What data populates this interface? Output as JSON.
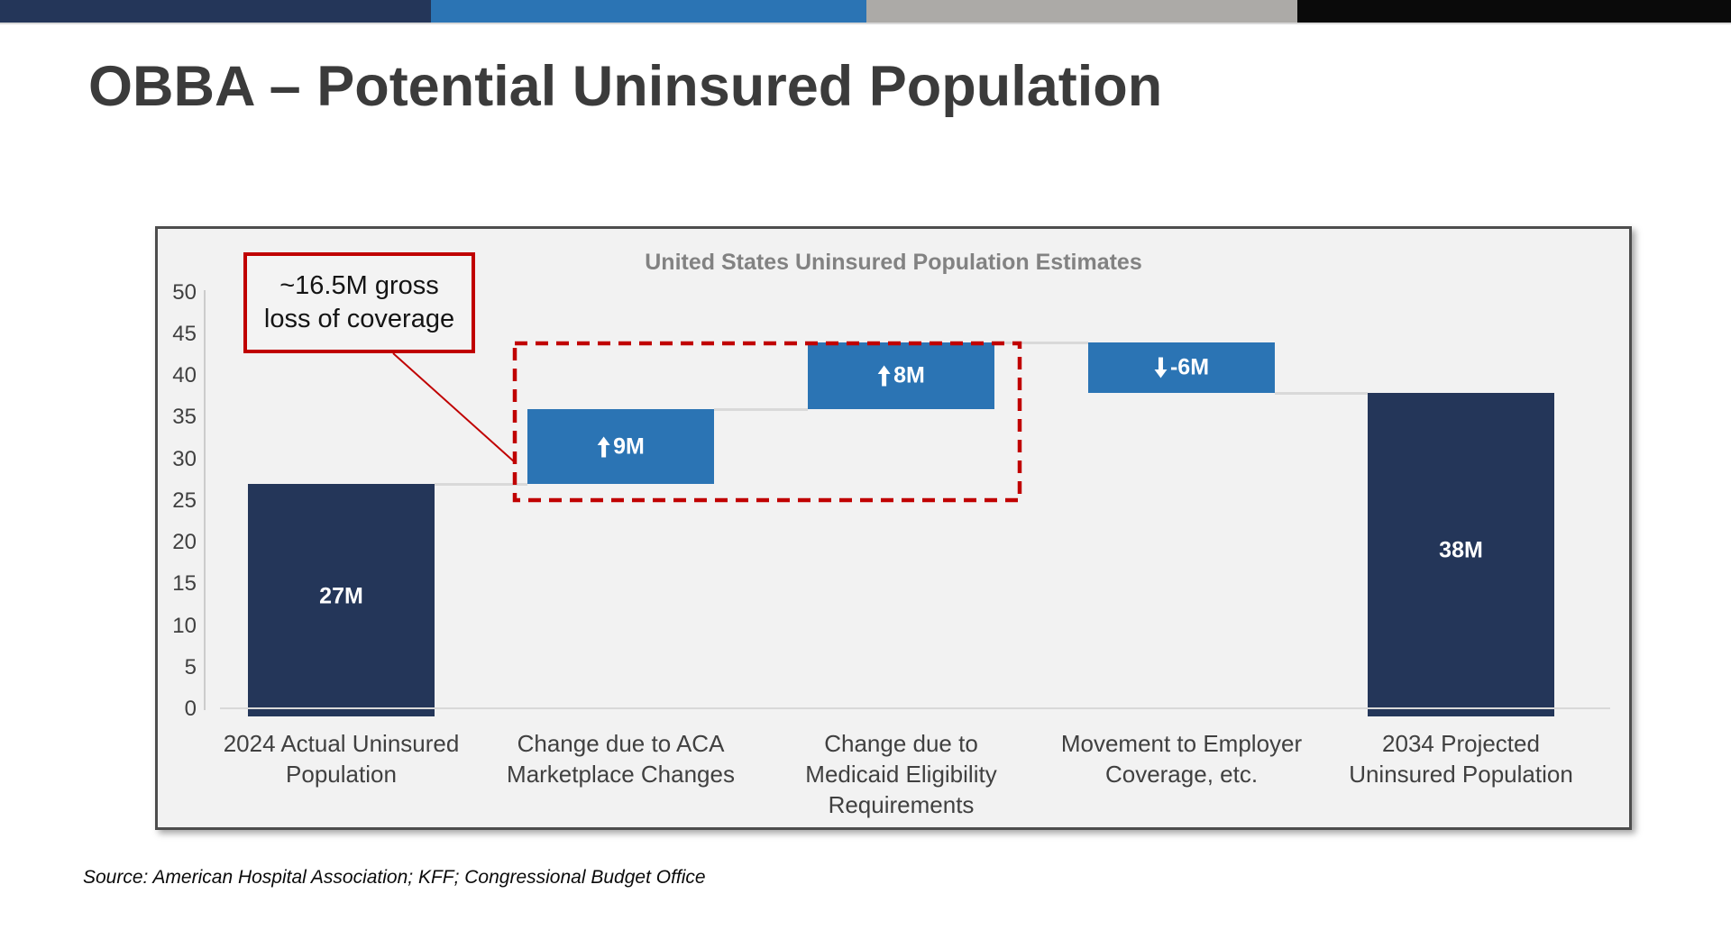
{
  "page": {
    "title": "OBBA – Potential Uninsured Population",
    "source": "Source: American Hospital Association; KFF; Congressional Budget Office"
  },
  "banner": {
    "segments": [
      {
        "name": "navy",
        "color": "#243659"
      },
      {
        "name": "blue",
        "color": "#2b74b4"
      },
      {
        "name": "gray",
        "color": "#acaaa7"
      },
      {
        "name": "black",
        "color": "#0a0a0a"
      }
    ]
  },
  "colors": {
    "bar_total": "#243659",
    "bar_change": "#2b74b4",
    "connector": "#d9d9d9",
    "annotation_red": "#c00000",
    "chart_background": "#f2f2f2",
    "bar_label_text": "#ffffff"
  },
  "chart_data": {
    "type": "bar",
    "subtype": "waterfall",
    "title": "United States Uninsured Population Estimates",
    "ylim": [
      0,
      50
    ],
    "y_ticks": [
      50,
      45,
      40,
      35,
      30,
      25,
      20,
      15,
      10,
      5,
      0
    ],
    "grid": "off",
    "legend": "none",
    "categories": [
      "2024 Actual Uninsured Population",
      "Change due to ACA Marketplace Changes",
      "Change due to Medicaid Eligibility Requirements",
      "Movement to Employer Coverage, etc.",
      "2034 Projected Uninsured Population"
    ],
    "values": [
      27,
      9,
      8,
      -6,
      38
    ],
    "bars": [
      {
        "category_lines": [
          "2024 Actual Uninsured",
          "Population"
        ],
        "range": [
          0,
          27
        ],
        "label": "27M",
        "kind": "total",
        "arrow": null
      },
      {
        "category_lines": [
          "Change due to ACA",
          "Marketplace Changes"
        ],
        "range": [
          27,
          36
        ],
        "label": "9M",
        "kind": "change",
        "arrow": "up"
      },
      {
        "category_lines": [
          "Change due to",
          "Medicaid Eligibility",
          "Requirements"
        ],
        "range": [
          36,
          44
        ],
        "label": "8M",
        "kind": "change",
        "arrow": "up"
      },
      {
        "category_lines": [
          "Movement to Employer",
          "Coverage, etc."
        ],
        "range": [
          44,
          38
        ],
        "label": "-6M",
        "kind": "change",
        "arrow": "down"
      },
      {
        "category_lines": [
          "2034 Projected",
          "Uninsured Population"
        ],
        "range": [
          0,
          38
        ],
        "label": "38M",
        "kind": "total",
        "arrow": null
      }
    ],
    "connector_levels": [
      27,
      36,
      44,
      38
    ],
    "annotation": {
      "lines": [
        "~16.5M gross",
        "loss of coverage"
      ],
      "highlighted_bars": [
        "Change due to ACA Marketplace Changes",
        "Change due to Medicaid Eligibility Requirements"
      ]
    }
  }
}
